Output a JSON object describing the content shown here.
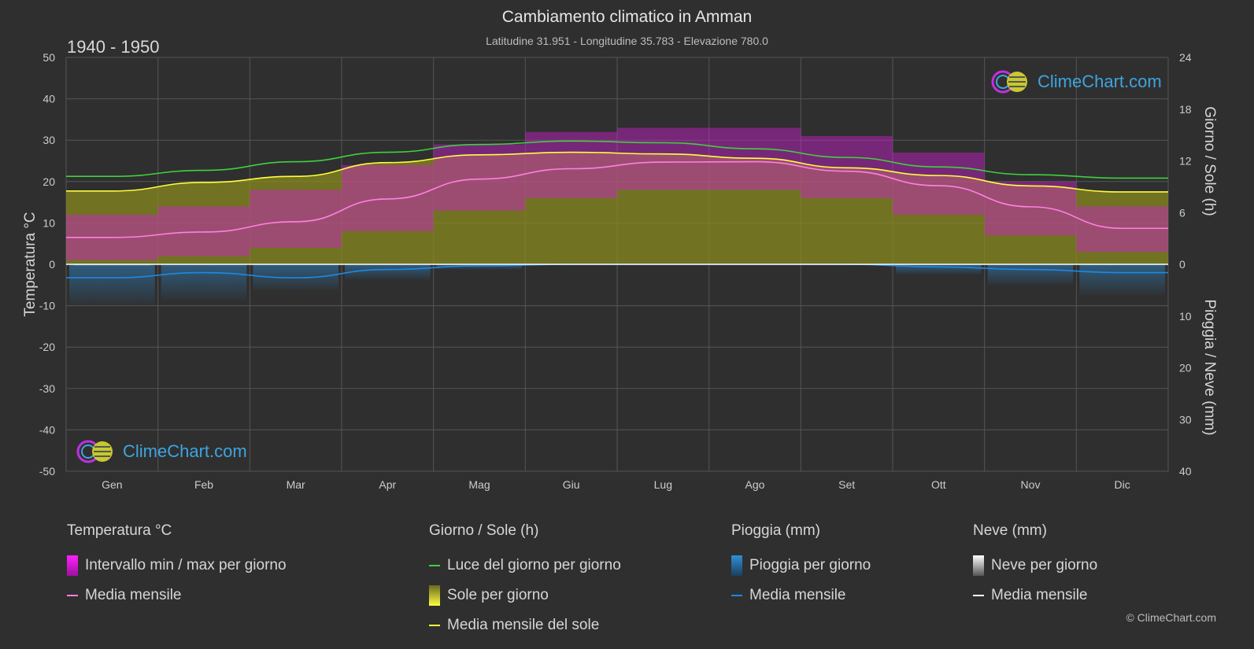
{
  "header": {
    "title": "Cambiamento climatico in Amman",
    "subtitle": "Latitudine 31.951 - Longitudine 35.783 - Elevazione 780.0",
    "period": "1940 - 1950"
  },
  "brand": {
    "logo_text": "ClimeChart.com",
    "copyright": "© ClimeChart.com"
  },
  "colors": {
    "background": "#2f2f2f",
    "grid": "#555555",
    "temp_range": "#d020d0",
    "temp_mean": "#ff80e0",
    "daylight": "#40d040",
    "sunshine_fill": "#8a8a20",
    "sunshine_mean": "#ffff40",
    "rain": "#2f90d8",
    "rain_mean": "#1e88e5",
    "snow": "#dddddd",
    "snow_mean": "#ffffff",
    "logo_text": "#3da5e0"
  },
  "chart_data": {
    "type": "area",
    "categories": [
      "Gen",
      "Feb",
      "Mar",
      "Apr",
      "Mag",
      "Giu",
      "Lug",
      "Ago",
      "Set",
      "Ott",
      "Nov",
      "Dic"
    ],
    "axes": {
      "left": {
        "label": "Temperatura °C",
        "min": -50,
        "max": 50,
        "ticks": [
          50,
          40,
          30,
          20,
          10,
          0,
          -10,
          -20,
          -30,
          -40,
          -50
        ]
      },
      "right_top": {
        "label": "Giorno / Sole (h)",
        "min": 0,
        "max": 24,
        "ticks": [
          24,
          18,
          12,
          6,
          0
        ]
      },
      "right_bottom": {
        "label": "Pioggia / Neve (mm)",
        "min": 0,
        "max": 40,
        "ticks": [
          0,
          10,
          20,
          30,
          40
        ]
      }
    },
    "grid": true,
    "series": [
      {
        "name": "Intervallo min / max per giorno",
        "kind": "range",
        "unit": "°C",
        "min": [
          1,
          2,
          4,
          8,
          13,
          16,
          18,
          18,
          16,
          12,
          7,
          3
        ],
        "max": [
          12,
          14,
          18,
          24,
          29,
          32,
          33,
          33,
          31,
          27,
          20,
          14
        ]
      },
      {
        "name": "Media mensile",
        "kind": "line",
        "unit": "°C",
        "values": [
          6.5,
          7.8,
          10.3,
          15.8,
          20.6,
          23.1,
          24.7,
          24.8,
          22.5,
          19.0,
          13.9,
          8.7
        ]
      },
      {
        "name": "Luce del giorno per giorno",
        "kind": "line",
        "unit": "h",
        "values": [
          10.2,
          10.9,
          11.9,
          13.0,
          13.9,
          14.3,
          14.1,
          13.4,
          12.4,
          11.3,
          10.4,
          10.0
        ]
      },
      {
        "name": "Sole per giorno",
        "kind": "area",
        "unit": "h",
        "values": [
          8.5,
          9.5,
          10.2,
          11.8,
          12.7,
          13.0,
          12.8,
          12.3,
          11.2,
          10.3,
          9.1,
          8.4
        ]
      },
      {
        "name": "Media mensile del sole",
        "kind": "line",
        "unit": "h",
        "values": [
          8.5,
          9.5,
          10.2,
          11.8,
          12.7,
          13.0,
          12.8,
          12.3,
          11.2,
          10.3,
          9.1,
          8.4
        ]
      },
      {
        "name": "Pioggia per giorno",
        "kind": "bars",
        "unit": "mm",
        "values": [
          8,
          7,
          5,
          3,
          1,
          0,
          0,
          0,
          0,
          2,
          4,
          6
        ]
      },
      {
        "name": "Media mensile",
        "kind": "line",
        "unit": "mm",
        "values": [
          2.6,
          1.6,
          2.6,
          1.0,
          0.3,
          0.0,
          0.0,
          0.0,
          0.0,
          0.5,
          1.0,
          1.6
        ]
      },
      {
        "name": "Neve per giorno",
        "kind": "bars",
        "unit": "mm",
        "values": [
          0.2,
          0.1,
          0,
          0,
          0,
          0,
          0,
          0,
          0,
          0,
          0,
          0.1
        ]
      },
      {
        "name": "Media mensile",
        "kind": "line",
        "unit": "mm",
        "values": [
          0,
          0,
          0,
          0,
          0,
          0,
          0,
          0,
          0,
          0,
          0,
          0
        ]
      }
    ]
  },
  "legend": {
    "temperature": {
      "title": "Temperatura °C",
      "items": [
        "Intervallo min / max per giorno",
        "Media mensile"
      ]
    },
    "sun": {
      "title": "Giorno / Sole (h)",
      "items": [
        "Luce del giorno per giorno",
        "Sole per giorno",
        "Media mensile del sole"
      ]
    },
    "rain": {
      "title": "Pioggia (mm)",
      "items": [
        "Pioggia per giorno",
        "Media mensile"
      ]
    },
    "snow": {
      "title": "Neve (mm)",
      "items": [
        "Neve per giorno",
        "Media mensile"
      ]
    }
  }
}
